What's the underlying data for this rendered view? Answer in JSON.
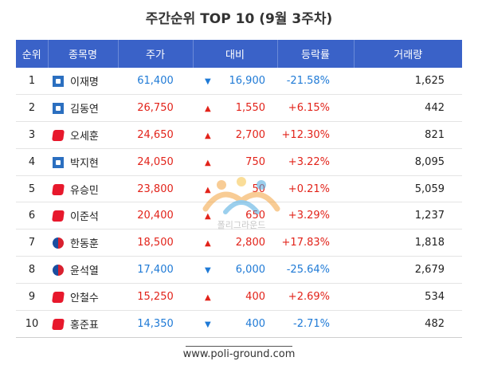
{
  "title": "주간순위 TOP 10 (9월 3주차)",
  "headers": [
    "순위",
    "종목명",
    "주가",
    "대비",
    "등락률",
    "거래량"
  ],
  "colors": {
    "header_bg": "#3a62c8",
    "up": "#e2231a",
    "down": "#1f7ad6"
  },
  "watermark": "폴리그라운드",
  "rows": [
    {
      "rank": "1",
      "logo": "democratic-party-logo",
      "name": "이재명",
      "price": "61,400",
      "dir": "down",
      "arrow": "▼",
      "diff": "16,900",
      "rate": "-21.58%",
      "volume": "1,625"
    },
    {
      "rank": "2",
      "logo": "democratic-party-logo",
      "name": "김동연",
      "price": "26,750",
      "dir": "up",
      "arrow": "▲",
      "diff": "1,550",
      "rate": "+6.15%",
      "volume": "442"
    },
    {
      "rank": "3",
      "logo": "peoples-power-party-logo",
      "name": "오세훈",
      "price": "24,650",
      "dir": "up",
      "arrow": "▲",
      "diff": "2,700",
      "rate": "+12.30%",
      "volume": "821"
    },
    {
      "rank": "4",
      "logo": "democratic-party-logo",
      "name": "박지현",
      "price": "24,050",
      "dir": "up",
      "arrow": "▲",
      "diff": "750",
      "rate": "+3.22%",
      "volume": "8,095"
    },
    {
      "rank": "5",
      "logo": "peoples-power-party-logo",
      "name": "유승민",
      "price": "23,800",
      "dir": "up",
      "arrow": "▲",
      "diff": "50",
      "rate": "+0.21%",
      "volume": "5,059"
    },
    {
      "rank": "6",
      "logo": "peoples-power-party-logo",
      "name": "이준석",
      "price": "20,400",
      "dir": "up",
      "arrow": "▲",
      "diff": "650",
      "rate": "+3.29%",
      "volume": "1,237"
    },
    {
      "rank": "7",
      "logo": "government-emblem-logo",
      "name": "한동훈",
      "price": "18,500",
      "dir": "up",
      "arrow": "▲",
      "diff": "2,800",
      "rate": "+17.83%",
      "volume": "1,818"
    },
    {
      "rank": "8",
      "logo": "government-emblem-logo",
      "name": "윤석열",
      "price": "17,400",
      "dir": "down",
      "arrow": "▼",
      "diff": "6,000",
      "rate": "-25.64%",
      "volume": "2,679"
    },
    {
      "rank": "9",
      "logo": "peoples-power-party-logo",
      "name": "안철수",
      "price": "15,250",
      "dir": "up",
      "arrow": "▲",
      "diff": "400",
      "rate": "+2.69%",
      "volume": "534"
    },
    {
      "rank": "10",
      "logo": "peoples-power-party-logo",
      "name": "홍준표",
      "price": "14,350",
      "dir": "down",
      "arrow": "▼",
      "diff": "400",
      "rate": "-2.71%",
      "volume": "482"
    }
  ],
  "footer": "www.poli-ground.com"
}
